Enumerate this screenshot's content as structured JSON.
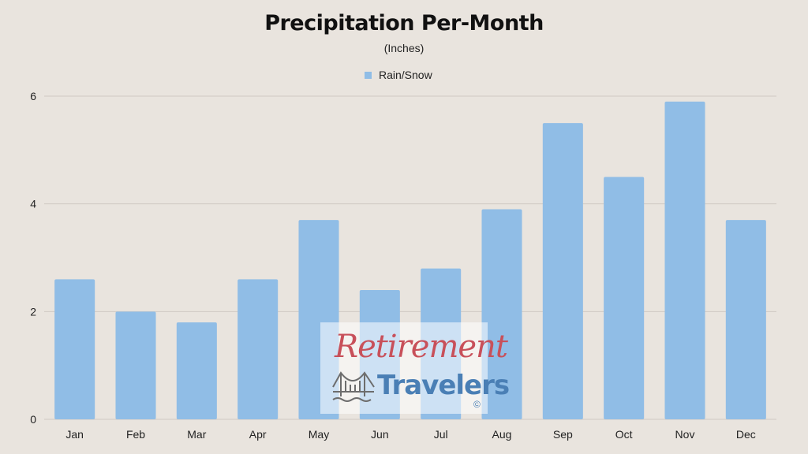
{
  "chart_data": {
    "type": "bar",
    "title": "Precipitation Per-Month",
    "subtitle": "(Inches)",
    "categories": [
      "Jan",
      "Feb",
      "Mar",
      "Apr",
      "May",
      "Jun",
      "Jul",
      "Aug",
      "Sep",
      "Oct",
      "Nov",
      "Dec"
    ],
    "series": [
      {
        "name": "Rain/Snow",
        "values": [
          2.6,
          2.0,
          1.8,
          2.6,
          3.7,
          2.4,
          2.8,
          3.9,
          5.5,
          4.5,
          5.9,
          3.7
        ],
        "color": "#90bde6"
      }
    ],
    "ylim": [
      0,
      6
    ],
    "yticks": [
      0,
      2,
      4,
      6
    ],
    "grid": true,
    "legend": "top-center"
  },
  "watermark": {
    "line1": "Retirement",
    "line2": "Travelers",
    "mark": "©",
    "icon": "bridge-icon"
  },
  "colors": {
    "background": "#e9e4de",
    "gridline": "#cfc9c2",
    "bar": "#90bde6"
  }
}
